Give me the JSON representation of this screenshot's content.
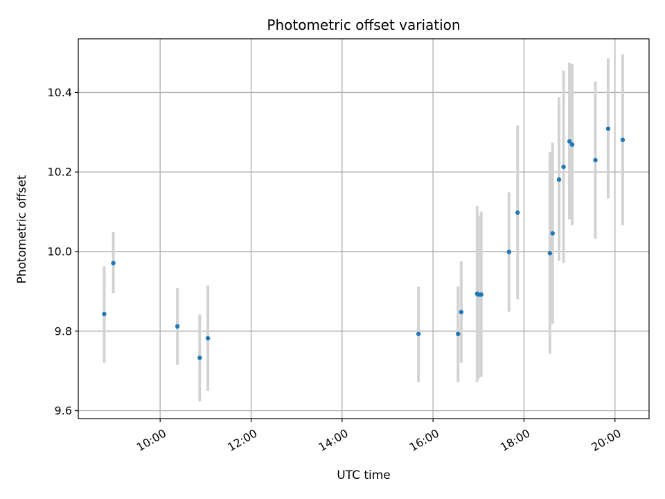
{
  "chart_data": {
    "type": "scatter",
    "title": "Photometric offset variation",
    "xlabel": "UTC time",
    "ylabel": "Photometric offset",
    "x_unit": "hours UTC",
    "xlim": [
      8.2,
      20.75
    ],
    "ylim": [
      9.58,
      10.535
    ],
    "x_ticks": [
      {
        "value": 10,
        "label": "10:00"
      },
      {
        "value": 12,
        "label": "12:00"
      },
      {
        "value": 14,
        "label": "14:00"
      },
      {
        "value": 16,
        "label": "16:00"
      },
      {
        "value": 18,
        "label": "18:00"
      },
      {
        "value": 20,
        "label": "20:00"
      }
    ],
    "y_ticks": [
      {
        "value": 9.6,
        "label": "9.6"
      },
      {
        "value": 9.8,
        "label": "9.8"
      },
      {
        "value": 10.0,
        "label": "10.0"
      },
      {
        "value": 10.2,
        "label": "10.2"
      },
      {
        "value": 10.4,
        "label": "10.4"
      }
    ],
    "grid": true,
    "points": [
      {
        "x": 8.77,
        "y": 9.843,
        "err_low": 9.72,
        "err_high": 9.963
      },
      {
        "x": 8.97,
        "y": 9.971,
        "err_low": 9.895,
        "err_high": 10.049
      },
      {
        "x": 10.38,
        "y": 9.812,
        "err_low": 9.715,
        "err_high": 9.908
      },
      {
        "x": 10.87,
        "y": 9.733,
        "err_low": 9.623,
        "err_high": 9.842
      },
      {
        "x": 11.05,
        "y": 9.782,
        "err_low": 9.65,
        "err_high": 9.915
      },
      {
        "x": 15.68,
        "y": 9.793,
        "err_low": 9.672,
        "err_high": 9.912
      },
      {
        "x": 16.55,
        "y": 9.793,
        "err_low": 9.672,
        "err_high": 9.912
      },
      {
        "x": 16.62,
        "y": 9.848,
        "err_low": 9.72,
        "err_high": 9.976
      },
      {
        "x": 16.97,
        "y": 9.894,
        "err_low": 9.672,
        "err_high": 10.115
      },
      {
        "x": 17.0,
        "y": 9.892,
        "err_low": 9.68,
        "err_high": 10.09
      },
      {
        "x": 17.06,
        "y": 9.892,
        "err_low": 9.685,
        "err_high": 10.1
      },
      {
        "x": 17.67,
        "y": 9.999,
        "err_low": 9.849,
        "err_high": 10.149
      },
      {
        "x": 17.86,
        "y": 10.098,
        "err_low": 9.88,
        "err_high": 10.317
      },
      {
        "x": 18.57,
        "y": 9.996,
        "err_low": 9.743,
        "err_high": 10.25
      },
      {
        "x": 18.63,
        "y": 10.046,
        "err_low": 9.818,
        "err_high": 10.274
      },
      {
        "x": 18.77,
        "y": 10.181,
        "err_low": 9.977,
        "err_high": 10.388
      },
      {
        "x": 18.87,
        "y": 10.213,
        "err_low": 9.971,
        "err_high": 10.455
      },
      {
        "x": 19.0,
        "y": 10.277,
        "err_low": 10.081,
        "err_high": 10.475
      },
      {
        "x": 19.06,
        "y": 10.269,
        "err_low": 10.066,
        "err_high": 10.472
      },
      {
        "x": 19.57,
        "y": 10.23,
        "err_low": 10.032,
        "err_high": 10.428
      },
      {
        "x": 19.85,
        "y": 10.309,
        "err_low": 10.133,
        "err_high": 10.486
      },
      {
        "x": 20.17,
        "y": 10.281,
        "err_low": 10.066,
        "err_high": 10.496
      }
    ],
    "colors": {
      "point": "#1f77b4",
      "error_bar": "#d3d3d3",
      "grid": "#b0b0b0"
    }
  }
}
